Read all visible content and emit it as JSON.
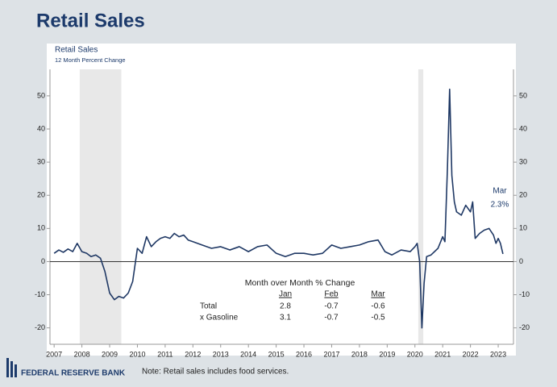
{
  "page_title": "Retail Sales",
  "footer": {
    "logo_text": "FEDERAL RESERVE BANK",
    "note": "Note: Retail sales includes food services."
  },
  "chart_data": {
    "type": "line",
    "title": "Retail Sales",
    "subtitle": "12 Month Percent Change",
    "xlim": [
      2006.85,
      2023.55
    ],
    "xticks": [
      2007,
      2008,
      2009,
      2010,
      2011,
      2012,
      2013,
      2014,
      2015,
      2016,
      2017,
      2018,
      2019,
      2020,
      2021,
      2022,
      2023
    ],
    "ylim": [
      -23,
      58
    ],
    "yticks": [
      -20,
      -10,
      0,
      10,
      20,
      30,
      40,
      50
    ],
    "right_axis_mirror": true,
    "shaded_ranges": [
      [
        2007.92,
        2009.42
      ],
      [
        2020.12,
        2020.3
      ]
    ],
    "shade_color": "#e8e8e8",
    "x": [
      2007.0,
      2007.17,
      2007.33,
      2007.5,
      2007.67,
      2007.83,
      2008.0,
      2008.17,
      2008.33,
      2008.5,
      2008.67,
      2008.83,
      2009.0,
      2009.17,
      2009.33,
      2009.5,
      2009.67,
      2009.83,
      2010.0,
      2010.17,
      2010.33,
      2010.5,
      2010.67,
      2010.83,
      2011.0,
      2011.17,
      2011.33,
      2011.5,
      2011.67,
      2011.83,
      2012.0,
      2012.33,
      2012.67,
      2013.0,
      2013.33,
      2013.67,
      2014.0,
      2014.33,
      2014.67,
      2015.0,
      2015.33,
      2015.67,
      2016.0,
      2016.33,
      2016.67,
      2017.0,
      2017.33,
      2017.67,
      2018.0,
      2018.33,
      2018.67,
      2018.92,
      2019.17,
      2019.5,
      2019.83,
      2020.0,
      2020.08,
      2020.17,
      2020.25,
      2020.33,
      2020.42,
      2020.58,
      2020.83,
      2021.0,
      2021.08,
      2021.17,
      2021.25,
      2021.33,
      2021.42,
      2021.5,
      2021.67,
      2021.83,
      2022.0,
      2022.08,
      2022.17,
      2022.33,
      2022.5,
      2022.67,
      2022.83,
      2022.92,
      2023.0,
      2023.08,
      2023.17
    ],
    "series": [
      {
        "name": "Retail Sales",
        "color": "#1f3864",
        "values": [
          2.5,
          3.5,
          2.8,
          3.8,
          3.0,
          5.5,
          3.0,
          2.5,
          1.5,
          2.0,
          1.0,
          -3.0,
          -9.5,
          -11.5,
          -10.5,
          -11.0,
          -9.5,
          -6.0,
          4.0,
          2.5,
          7.5,
          4.5,
          6.0,
          7.0,
          7.5,
          7.0,
          8.5,
          7.5,
          8.0,
          6.5,
          6.0,
          5.0,
          4.0,
          4.5,
          3.5,
          4.5,
          3.0,
          4.5,
          5.0,
          2.5,
          1.5,
          2.5,
          2.5,
          2.0,
          2.5,
          5.0,
          4.0,
          4.5,
          5.0,
          6.0,
          6.5,
          3.0,
          2.0,
          3.5,
          3.0,
          4.5,
          5.5,
          0.0,
          -20.0,
          -6.5,
          1.5,
          2.0,
          4.0,
          7.5,
          6.0,
          28.0,
          52.0,
          26.0,
          18.0,
          15.0,
          14.0,
          17.0,
          15.0,
          18.0,
          7.0,
          8.5,
          9.5,
          10.0,
          8.0,
          5.5,
          7.0,
          5.5,
          2.3
        ]
      }
    ],
    "annotations": [
      "Mar",
      "2.3%"
    ],
    "table": {
      "title": "Month over Month % Change",
      "columns": [
        "Jan",
        "Feb",
        "Mar"
      ],
      "rows": [
        {
          "label": "Total",
          "values": [
            2.8,
            -0.7,
            -0.6
          ]
        },
        {
          "label": "x Gasoline",
          "values": [
            3.1,
            -0.7,
            -0.5
          ]
        }
      ]
    }
  }
}
